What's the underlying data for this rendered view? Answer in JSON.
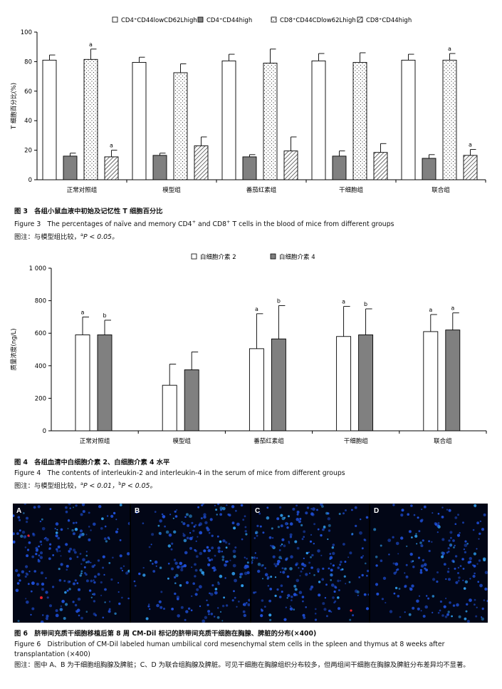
{
  "chart_data": [
    {
      "type": "bar",
      "ylabel": "T 细胞百分比(%)",
      "ylim": [
        0,
        100
      ],
      "yticks": [
        "0",
        "20",
        "40",
        "60",
        "80",
        "100"
      ],
      "categories": [
        "正常对照组",
        "模型组",
        "番茄红素组",
        "干细胞组",
        "联合组"
      ],
      "series": [
        {
          "name": "CD4⁺CD44lowCD62Lhigh",
          "pattern": "white",
          "values": [
            81,
            79.5,
            80.5,
            80.5,
            81
          ],
          "errors": [
            3.5,
            3.5,
            4.5,
            5,
            4
          ]
        },
        {
          "name": "CD4⁺CD44high",
          "pattern": "gray",
          "values": [
            16,
            16.5,
            15.5,
            16,
            14.5
          ],
          "errors": [
            2,
            1.5,
            1.5,
            3.5,
            2.5
          ]
        },
        {
          "name": "CD8⁺CD44CDlow62Lhigh",
          "pattern": "dots",
          "values": [
            81.5,
            72.5,
            79,
            79.5,
            81
          ],
          "errors": [
            7,
            6,
            9.5,
            6.5,
            4.5
          ]
        },
        {
          "name": "CD8⁺CD44high",
          "pattern": "hatch",
          "values": [
            15.5,
            23,
            19.5,
            18.5,
            16.5
          ],
          "errors": [
            4.5,
            6,
            9.5,
            6,
            4
          ]
        }
      ],
      "annotations": [
        {
          "series": 2,
          "category": 0,
          "text": "a"
        },
        {
          "series": 3,
          "category": 0,
          "text": "a"
        },
        {
          "series": 2,
          "category": 4,
          "text": "a"
        },
        {
          "series": 3,
          "category": 4,
          "text": "a"
        }
      ]
    },
    {
      "type": "bar",
      "ylabel": "质量浓度(ng/L)",
      "ylim": [
        0,
        1000
      ],
      "yticks": [
        "0",
        "200",
        "400",
        "600",
        "800",
        "1 000"
      ],
      "categories": [
        "正常对照组",
        "模型组",
        "番茄红素组",
        "干细胞组",
        "联合组"
      ],
      "series": [
        {
          "name": "白细胞介素 2",
          "pattern": "white",
          "values": [
            590,
            280,
            505,
            580,
            610
          ],
          "errors": [
            110,
            130,
            215,
            185,
            105
          ]
        },
        {
          "name": "白细胞介素 4",
          "pattern": "gray",
          "values": [
            590,
            375,
            565,
            590,
            620
          ],
          "errors": [
            90,
            110,
            205,
            160,
            105
          ]
        }
      ],
      "annotations": [
        {
          "series": 0,
          "category": 0,
          "text": "a"
        },
        {
          "series": 1,
          "category": 0,
          "text": "b"
        },
        {
          "series": 0,
          "category": 2,
          "text": "a"
        },
        {
          "series": 1,
          "category": 2,
          "text": "b"
        },
        {
          "series": 0,
          "category": 3,
          "text": "a"
        },
        {
          "series": 1,
          "category": 3,
          "text": "b"
        },
        {
          "series": 0,
          "category": 4,
          "text": "a"
        },
        {
          "series": 1,
          "category": 4,
          "text": "a"
        }
      ]
    }
  ],
  "captions": {
    "fig3_zh": "图 3　各组小鼠血液中初始及记忆性 T 细胞百分比",
    "fig3_en_pre": "Figure 3　The percentages of naïve and memory CD4",
    "fig3_en_mid": " and CD8",
    "fig3_en_post": " T cells in the blood of mice from different groups",
    "fig3_note_pre": "图注：与模型组比较，",
    "fig3_note_a": "a",
    "fig3_note_post": "P < 0.05。",
    "fig4_zh": "图 4　各组血清中白细胞介素 2、白细胞介素 4 水平",
    "fig4_en": "Figure 4　The contents of interleukin-2 and interleukin-4 in the serum of mice from different groups",
    "fig4_note_pre": "图注：与模型组比较，",
    "fig4_note_a": "a",
    "fig4_note_mid": "P < 0.01，",
    "fig4_note_b": "b",
    "fig4_note_post": "P < 0.05。",
    "fig6_zh": "图 6　脐带间充质干细胞移植后第 8 周 CM-Dil 标记的脐带间充质干细胞在胸腺、脾脏的分布(×400)",
    "fig6_en": "Figure 6　Distribution of CM-Dil labeled human umbilical cord mesenchymal stem cells in the spleen and thymus at 8 weeks after transplantation (×400)",
    "fig6_note": "图注：图中 A、B 为干细胞组胸腺及脾脏；C、D 为联合组胸腺及脾脏。可见干细胞在胸腺组织分布较多，但两组间干细胞在胸腺及脾脏分布差异均不显著。"
  },
  "panels": {
    "labels": [
      "A",
      "B",
      "C",
      "D"
    ],
    "colors": {
      "background": "#020616",
      "cell": "#1e4fd8",
      "bright": "#2e9bea",
      "marker": "#e0202a"
    }
  },
  "icons": {
    "legend_swatch": "legend-swatch-icon",
    "fluorescence": "fluorescence-panel-icon"
  }
}
